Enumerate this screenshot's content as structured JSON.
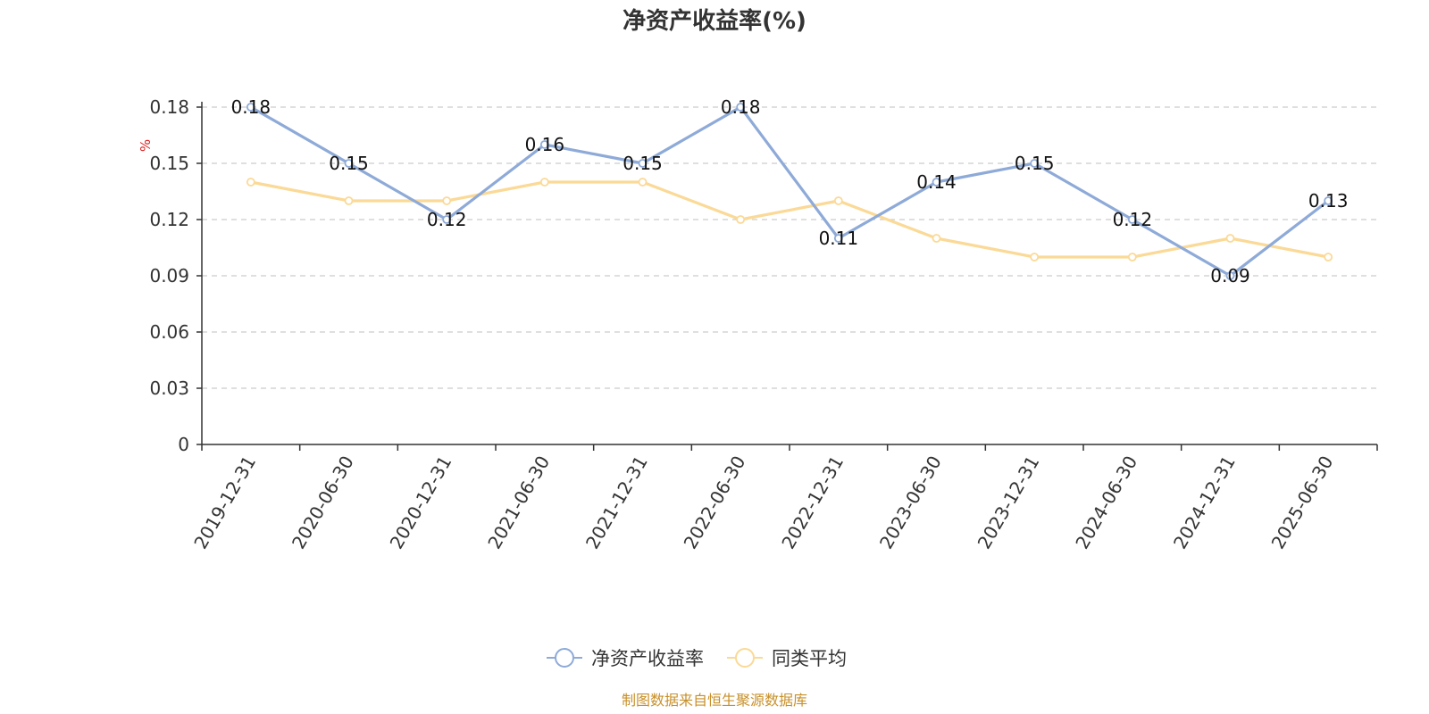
{
  "chart_data": {
    "type": "line",
    "title": "净资产收益率(%)",
    "ylabel": "%",
    "ylim": [
      0,
      0.18
    ],
    "yticks": [
      "0",
      "0.03",
      "0.06",
      "0.09",
      "0.12",
      "0.15",
      "0.18"
    ],
    "categories": [
      "2019-12-31",
      "2020-06-30",
      "2020-12-31",
      "2021-06-30",
      "2021-12-31",
      "2022-06-30",
      "2022-12-31",
      "2023-06-30",
      "2023-12-31",
      "2024-06-30",
      "2024-12-31",
      "2025-06-30"
    ],
    "grid": true,
    "legend_position": "bottom",
    "series": [
      {
        "name": "净资产收益率",
        "color": "#8eaad8",
        "values": [
          0.18,
          0.15,
          0.12,
          0.16,
          0.15,
          0.18,
          0.11,
          0.14,
          0.15,
          0.12,
          0.09,
          0.13
        ],
        "labels": [
          "0.18",
          "0.15",
          "0.12",
          "0.16",
          "0.15",
          "0.18",
          "0.11",
          "0.14",
          "0.15",
          "0.12",
          "0.09",
          "0.13"
        ]
      },
      {
        "name": "同类平均",
        "color": "#fbd996",
        "values": [
          0.14,
          0.13,
          0.13,
          0.14,
          0.14,
          0.12,
          0.13,
          0.11,
          0.1,
          0.1,
          0.11,
          0.1
        ]
      }
    ],
    "source": "制图数据来自恒生聚源数据库"
  }
}
